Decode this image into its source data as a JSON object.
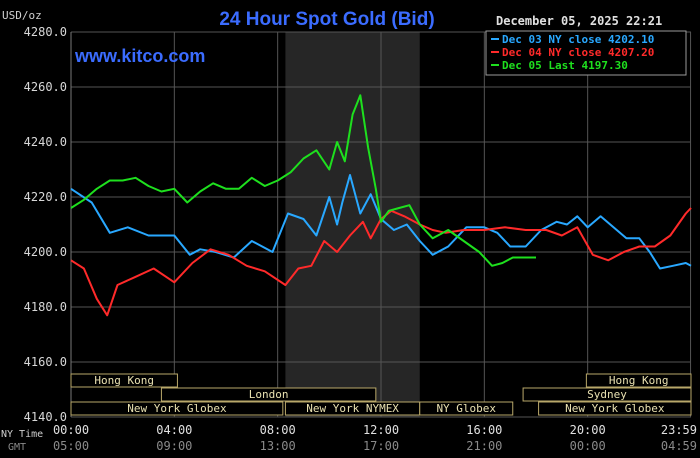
{
  "chart_data": {
    "type": "line",
    "title": "24 Hour Spot Gold (Bid)",
    "ylabel": "USD/oz",
    "date_label": "December 05, 2025 22:21",
    "watermark": "www.kitco.com",
    "ylim": [
      4140,
      4280
    ],
    "y_ticks": [
      "4280.0",
      "4260.0",
      "4240.0",
      "4220.0",
      "4200.0",
      "4180.0",
      "4160.0",
      "4140.0"
    ],
    "y_tick_values": [
      4280,
      4260,
      4240,
      4220,
      4200,
      4180,
      4160,
      4140
    ],
    "xlim": [
      0,
      24
    ],
    "x_tick_hours": [
      0,
      4,
      8,
      12,
      16,
      20,
      23.983
    ],
    "x_ticks_ny": [
      "00:00",
      "04:00",
      "08:00",
      "12:00",
      "16:00",
      "20:00",
      "23:59"
    ],
    "x_ticks_gmt": [
      "05:00",
      "09:00",
      "13:00",
      "17:00",
      "21:00",
      "00:00",
      "04:59"
    ],
    "row_label_ny": "NY Time",
    "row_label_gmt": "GMT",
    "grid": true,
    "shaded_range": [
      8.3,
      13.5
    ],
    "legend_position": "top-right",
    "series": [
      {
        "name": "Dec 03 NY close 4202.10",
        "color": "#29a8ff",
        "x": [
          0,
          0.8,
          1.5,
          2.2,
          3,
          4,
          4.6,
          5,
          5.6,
          6.3,
          7,
          7.8,
          8.4,
          9,
          9.5,
          10,
          10.3,
          10.5,
          10.8,
          11.2,
          11.6,
          12,
          12.5,
          13,
          13.5,
          14,
          14.6,
          15.3,
          16,
          16.5,
          17,
          17.6,
          18.2,
          18.8,
          19.2,
          19.6,
          20,
          20.5,
          21,
          21.5,
          22,
          22.4,
          22.8,
          23.3,
          23.8,
          24
        ],
        "y": [
          4223,
          4218,
          4207,
          4209,
          4206,
          4206,
          4199,
          4201,
          4200,
          4198,
          4204,
          4200,
          4214,
          4212,
          4206,
          4220,
          4210,
          4218,
          4228,
          4214,
          4221,
          4212,
          4208,
          4210,
          4204,
          4199,
          4202,
          4209,
          4209,
          4207,
          4202,
          4202,
          4208,
          4211,
          4210,
          4213,
          4209,
          4213,
          4209,
          4205,
          4205,
          4200,
          4194,
          4195,
          4196,
          4195
        ]
      },
      {
        "name": "Dec 04 NY close 4207.20",
        "color": "#ff2a2a",
        "x": [
          0,
          0.5,
          1,
          1.4,
          1.8,
          2.5,
          3.2,
          4,
          4.7,
          5.4,
          6.1,
          6.8,
          7.5,
          8.3,
          8.8,
          9.3,
          9.8,
          10.3,
          10.8,
          11.3,
          11.6,
          12,
          12.4,
          12.9,
          13.5,
          14,
          14.5,
          15.2,
          16,
          16.8,
          17.6,
          18.4,
          19,
          19.6,
          20.2,
          20.8,
          21.4,
          22,
          22.6,
          23.2,
          23.8,
          24
        ],
        "y": [
          4197,
          4194,
          4183,
          4177,
          4188,
          4191,
          4194,
          4189,
          4196,
          4201,
          4199,
          4195,
          4193,
          4188,
          4194,
          4195,
          4204,
          4200,
          4206,
          4211,
          4205,
          4212,
          4215,
          4213,
          4210,
          4208,
          4207,
          4208,
          4208,
          4209,
          4208,
          4208,
          4206,
          4209,
          4199,
          4197,
          4200,
          4202,
          4202,
          4206,
          4214,
          4216
        ]
      },
      {
        "name": "Dec 05 Last 4197.30",
        "color": "#1ee01e",
        "x": [
          0,
          0.5,
          1,
          1.5,
          2,
          2.5,
          3,
          3.5,
          4,
          4.5,
          5,
          5.5,
          6,
          6.5,
          7,
          7.5,
          8,
          8.5,
          9,
          9.5,
          10,
          10.3,
          10.6,
          10.9,
          11.2,
          11.5,
          11.8,
          12,
          12.3,
          12.7,
          13.1,
          13.5,
          14,
          14.6,
          15.2,
          15.8,
          16.3,
          16.7,
          17.1,
          17.6,
          18
        ],
        "y": [
          4216,
          4219,
          4223,
          4226,
          4226,
          4227,
          4224,
          4222,
          4223,
          4218,
          4222,
          4225,
          4223,
          4223,
          4227,
          4224,
          4226,
          4229,
          4234,
          4237,
          4230,
          4240,
          4233,
          4250,
          4257,
          4238,
          4223,
          4211,
          4215,
          4216,
          4217,
          4210,
          4205,
          4208,
          4204,
          4200,
          4195,
          4196,
          4198,
          4198,
          4198
        ]
      }
    ],
    "sessions": [
      {
        "label": "Hong Kong",
        "start": 0,
        "end": 4.12
      },
      {
        "label": "London",
        "start": 3.5,
        "end": 11.8
      },
      {
        "label": "New York Globex",
        "start": 0,
        "end": 8.2
      },
      {
        "label": "New York NYMEX",
        "start": 8.3,
        "end": 13.5
      },
      {
        "label": "NY Globex",
        "start": 13.5,
        "end": 17.1
      },
      {
        "label": "Sydney",
        "start": 17.5,
        "end": 24
      },
      {
        "label": "Hong Kong",
        "start": 19.95,
        "end": 24
      },
      {
        "label": "New York Globex",
        "start": 18.1,
        "end": 24
      }
    ]
  }
}
